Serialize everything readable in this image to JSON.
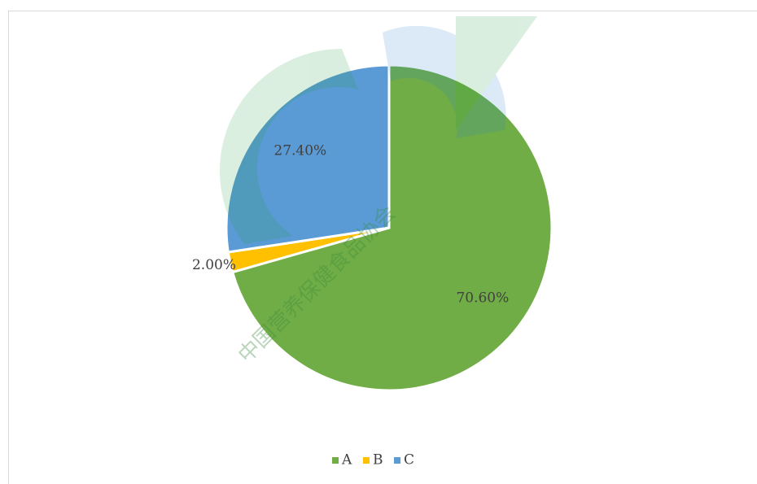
{
  "chart_data": {
    "type": "pie",
    "categories": [
      "A",
      "B",
      "C"
    ],
    "values": [
      70.6,
      2,
      27.4
    ],
    "value_labels": [
      "70.60%",
      "2.00%",
      "27.40%"
    ],
    "colors": [
      "#70ad47",
      "#ffc000",
      "#5b9bd5"
    ],
    "legend": "bottom",
    "watermark": "中国营养保健食品协会"
  }
}
